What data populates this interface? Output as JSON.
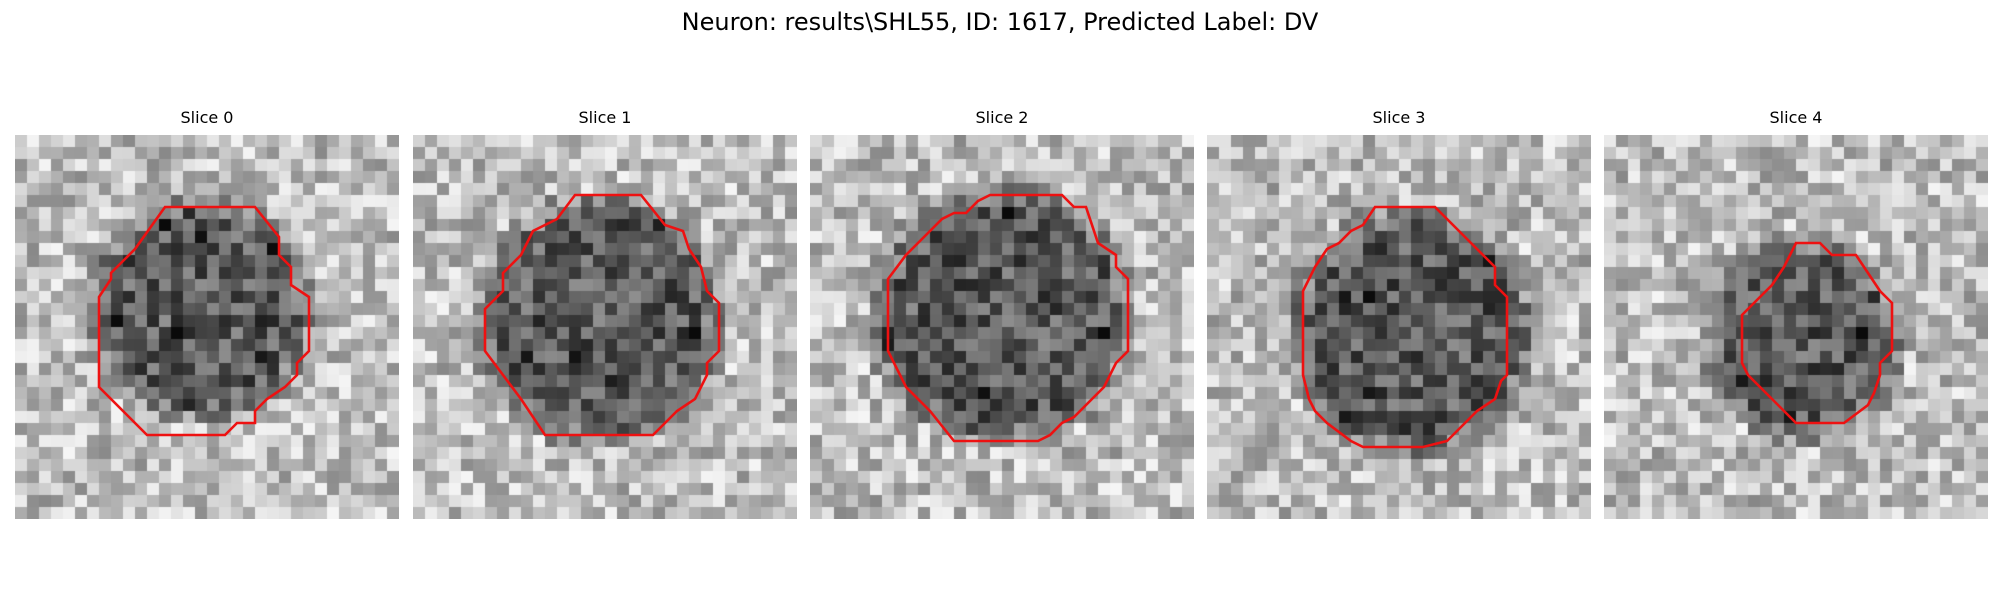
{
  "figure": {
    "title": "Neuron: results\\SHL55, ID: 1617, Predicted Label: DV"
  },
  "colors": {
    "outline": "#ee1111",
    "background": "#ffffff"
  },
  "grid_size": 32,
  "panels": [
    {
      "title": "Slice 0",
      "blob": {
        "cx": 15.5,
        "cy": 14.5,
        "r": 8.5
      },
      "outline": [
        [
          12.5,
          6
        ],
        [
          20,
          6
        ],
        [
          22,
          8.5
        ],
        [
          22,
          10
        ],
        [
          23,
          11
        ],
        [
          23,
          12.5
        ],
        [
          24.5,
          13.5
        ],
        [
          24.5,
          18
        ],
        [
          23.5,
          19
        ],
        [
          23.5,
          20
        ],
        [
          22.5,
          21
        ],
        [
          21,
          22
        ],
        [
          20,
          23
        ],
        [
          20,
          24
        ],
        [
          18.5,
          24
        ],
        [
          17.5,
          25
        ],
        [
          11,
          25
        ],
        [
          9,
          23
        ],
        [
          7,
          21
        ],
        [
          7,
          13.5
        ],
        [
          8,
          12
        ],
        [
          8,
          11.5
        ],
        [
          9,
          10.5
        ],
        [
          10,
          9.5
        ]
      ]
    },
    {
      "title": "Slice 1",
      "blob": {
        "cx": 15.5,
        "cy": 15.5,
        "r": 9.5
      },
      "outline": [
        [
          13.5,
          5
        ],
        [
          19,
          5
        ],
        [
          21,
          7.5
        ],
        [
          22.5,
          8
        ],
        [
          23,
          9.5
        ],
        [
          24,
          11
        ],
        [
          24.5,
          13
        ],
        [
          25.5,
          14
        ],
        [
          25.5,
          18
        ],
        [
          24.5,
          19
        ],
        [
          24.5,
          20
        ],
        [
          23.5,
          22
        ],
        [
          22,
          23
        ],
        [
          21,
          24
        ],
        [
          20,
          25
        ],
        [
          11,
          25
        ],
        [
          9,
          22
        ],
        [
          6,
          18
        ],
        [
          6,
          14.5
        ],
        [
          7.5,
          13
        ],
        [
          7.5,
          11.5
        ],
        [
          9,
          10
        ],
        [
          10,
          8
        ],
        [
          12,
          7
        ]
      ]
    },
    {
      "title": "Slice 2",
      "blob": {
        "cx": 16,
        "cy": 15,
        "r": 10
      },
      "outline": [
        [
          15,
          5
        ],
        [
          21,
          5
        ],
        [
          22,
          6
        ],
        [
          23,
          6
        ],
        [
          23.5,
          7.5
        ],
        [
          24,
          9
        ],
        [
          25.5,
          10
        ],
        [
          25.5,
          11
        ],
        [
          26.5,
          12
        ],
        [
          26.5,
          18
        ],
        [
          25.5,
          19
        ],
        [
          24.5,
          21
        ],
        [
          23.5,
          22
        ],
        [
          22,
          23.5
        ],
        [
          21,
          24
        ],
        [
          20,
          25
        ],
        [
          19,
          25.5
        ],
        [
          12,
          25.5
        ],
        [
          10,
          23
        ],
        [
          8,
          21
        ],
        [
          6.5,
          18
        ],
        [
          6.5,
          12
        ],
        [
          8,
          10
        ],
        [
          10,
          8
        ],
        [
          11,
          7
        ],
        [
          12,
          6.5
        ],
        [
          13,
          6.5
        ],
        [
          14,
          5.5
        ]
      ]
    },
    {
      "title": "Slice 3",
      "blob": {
        "cx": 17,
        "cy": 16.5,
        "r": 9.5
      },
      "outline": [
        [
          14,
          6
        ],
        [
          19,
          6
        ],
        [
          21,
          8
        ],
        [
          22,
          9
        ],
        [
          23,
          10
        ],
        [
          24,
          11
        ],
        [
          24,
          12.5
        ],
        [
          25,
          13.5
        ],
        [
          25,
          20
        ],
        [
          24.5,
          20.5
        ],
        [
          24,
          22
        ],
        [
          22.5,
          23
        ],
        [
          21.5,
          24
        ],
        [
          20.5,
          25
        ],
        [
          20,
          25.5
        ],
        [
          18,
          26
        ],
        [
          13,
          26
        ],
        [
          12,
          25.5
        ],
        [
          10,
          24
        ],
        [
          9,
          23
        ],
        [
          8.5,
          22
        ],
        [
          8,
          20
        ],
        [
          8,
          13
        ],
        [
          9,
          11
        ],
        [
          10,
          9.5
        ],
        [
          11,
          9
        ],
        [
          12,
          8
        ],
        [
          13,
          7.5
        ]
      ]
    },
    {
      "title": "Slice 4",
      "blob": {
        "cx": 16.5,
        "cy": 17,
        "r": 7.5
      },
      "outline": [
        [
          16,
          9
        ],
        [
          18,
          9
        ],
        [
          19,
          10
        ],
        [
          21,
          10
        ],
        [
          22,
          11.5
        ],
        [
          23,
          13
        ],
        [
          24,
          14
        ],
        [
          24,
          18
        ],
        [
          23,
          19
        ],
        [
          23,
          20
        ],
        [
          22.5,
          21.5
        ],
        [
          22,
          22.5
        ],
        [
          20,
          24
        ],
        [
          16,
          24
        ],
        [
          14,
          22
        ],
        [
          12,
          20
        ],
        [
          11.5,
          19
        ],
        [
          11.5,
          15
        ],
        [
          13,
          13.5
        ],
        [
          14,
          12.5
        ],
        [
          15,
          11
        ],
        [
          15.5,
          10
        ]
      ]
    }
  ]
}
